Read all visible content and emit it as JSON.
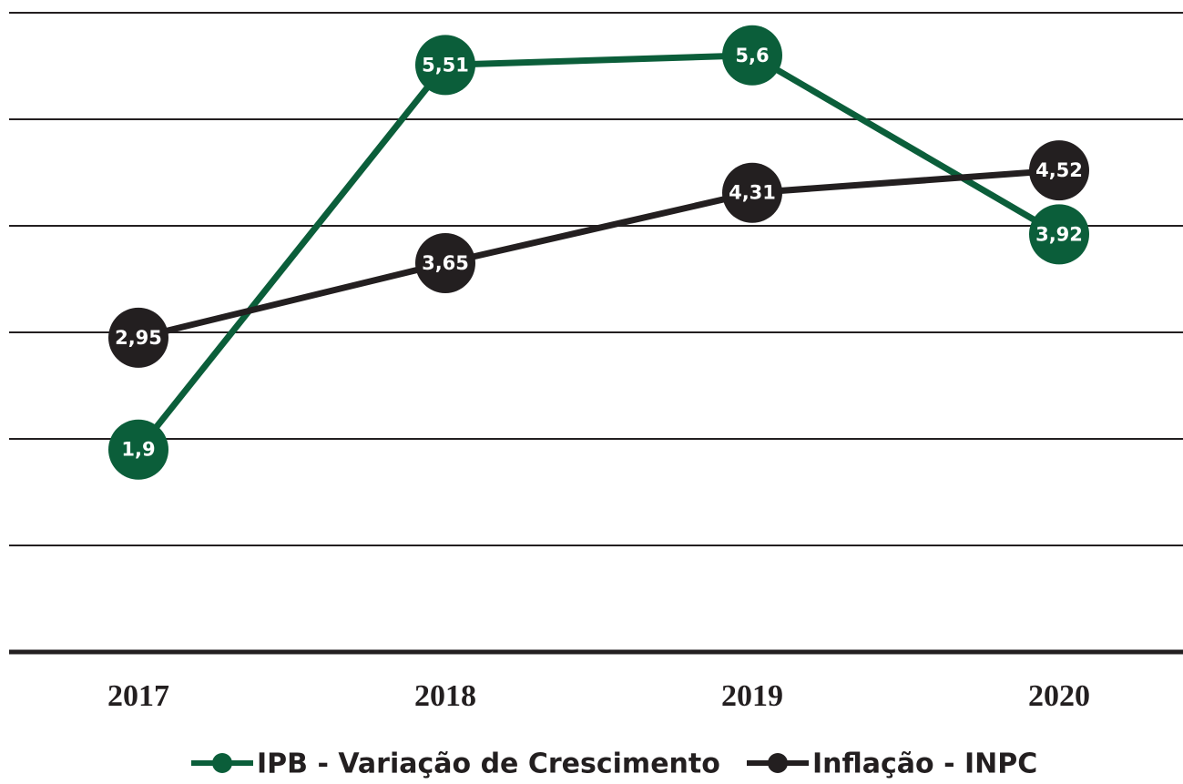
{
  "chart_data": {
    "type": "line",
    "categories": [
      "2017",
      "2018",
      "2019",
      "2020"
    ],
    "series": [
      {
        "name": "IPB - Variação de Crescimento",
        "color": "#0b5e3a",
        "values": [
          1.9,
          5.51,
          5.6,
          3.92
        ],
        "value_labels": [
          "1,9",
          "5,51",
          "5,6",
          "3,92"
        ]
      },
      {
        "name": "Inflação - INPC",
        "color": "#231f20",
        "values": [
          2.95,
          3.65,
          4.31,
          4.52
        ],
        "value_labels": [
          "2,95",
          "3,65",
          "4,31",
          "4,52"
        ]
      }
    ],
    "ylim": [
      0,
      6
    ],
    "yticks": [
      0,
      1,
      2,
      3,
      4,
      5,
      6
    ],
    "grid": true,
    "legend": "bottom"
  }
}
